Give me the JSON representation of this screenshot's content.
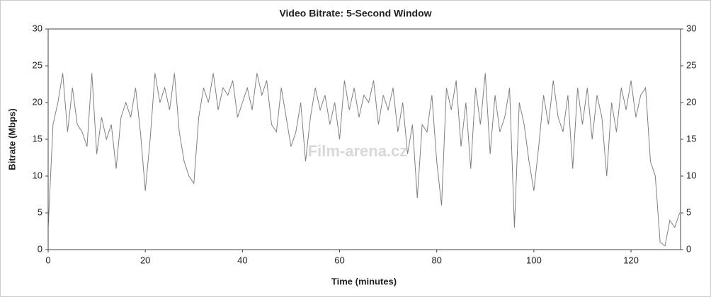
{
  "chart_data": {
    "type": "line",
    "title": "Video Bitrate: 5-Second Window",
    "x_label": "Time (minutes)",
    "y_label": "Bitrate (Mbps)",
    "annotation": "Film-arena.cz",
    "color": "#808080",
    "x": [
      0,
      1,
      2,
      3,
      4,
      5,
      6,
      7,
      8,
      9,
      10,
      11,
      12,
      13,
      14,
      15,
      16,
      17,
      18,
      19,
      20,
      21,
      22,
      23,
      24,
      25,
      26,
      27,
      28,
      29,
      30,
      31,
      32,
      33,
      34,
      35,
      36,
      37,
      38,
      39,
      40,
      41,
      42,
      43,
      44,
      45,
      46,
      47,
      48,
      49,
      50,
      51,
      52,
      53,
      54,
      55,
      56,
      57,
      58,
      59,
      60,
      61,
      62,
      63,
      64,
      65,
      66,
      67,
      68,
      69,
      70,
      71,
      72,
      73,
      74,
      75,
      76,
      77,
      78,
      79,
      80,
      81,
      82,
      83,
      84,
      85,
      86,
      87,
      88,
      89,
      90,
      91,
      92,
      93,
      94,
      95,
      96,
      97,
      98,
      99,
      100,
      101,
      102,
      103,
      104,
      105,
      106,
      107,
      108,
      109,
      110,
      111,
      112,
      113,
      114,
      115,
      116,
      117,
      118,
      119,
      120,
      121,
      122,
      123,
      124,
      125,
      126,
      127,
      128,
      129,
      130
    ],
    "values": [
      3,
      17,
      20,
      24,
      16,
      22,
      17,
      16,
      14,
      24,
      13,
      18,
      15,
      17,
      11,
      18,
      20,
      18,
      22,
      16,
      8,
      15,
      24,
      20,
      22,
      19,
      24,
      16,
      12,
      10,
      9,
      18,
      22,
      20,
      24,
      19,
      22,
      21,
      23,
      18,
      20,
      22,
      19,
      24,
      21,
      23,
      17,
      16,
      22,
      18,
      14,
      16,
      20,
      12,
      18,
      22,
      19,
      21,
      17,
      20,
      15,
      23,
      19,
      22,
      18,
      21,
      20,
      23,
      17,
      21,
      19,
      22,
      16,
      20,
      13,
      17,
      7,
      17,
      16,
      21,
      12,
      6,
      22,
      19,
      23,
      14,
      20,
      11,
      22,
      17,
      24,
      13,
      21,
      16,
      18,
      22,
      3,
      20,
      17,
      12,
      8,
      14,
      21,
      17,
      23,
      18,
      16,
      21,
      11,
      22,
      17,
      22,
      15,
      21,
      18,
      10,
      20,
      16,
      22,
      19,
      23,
      18,
      21,
      22,
      12,
      10,
      1,
      0.5,
      4,
      3,
      5
    ],
    "xlim": [
      0,
      130.2
    ],
    "ylim": [
      0,
      30
    ],
    "xticks": [
      0,
      20,
      40,
      60,
      80,
      100,
      120
    ],
    "yticks": [
      0,
      5,
      10,
      15,
      20,
      25,
      30
    ],
    "y2lim": [
      0,
      30
    ],
    "y2ticks": [
      0,
      5,
      10,
      15,
      20,
      25,
      30
    ],
    "grid": false
  }
}
